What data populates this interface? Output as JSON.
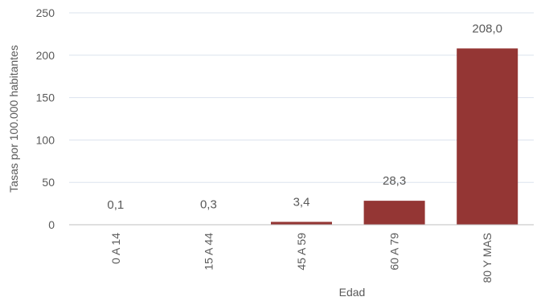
{
  "chart_data": {
    "type": "bar",
    "title": "",
    "xlabel": "Edad",
    "ylabel": "Tasas por 100.000 habitantes",
    "categories": [
      "0 A 14",
      "15 A 44",
      "45 A 59",
      "60 A 79",
      "80 Y MAS"
    ],
    "values": [
      0.1,
      0.3,
      3.4,
      28.3,
      208.0
    ],
    "data_labels": [
      "0,1",
      "0,3",
      "3,4",
      "28,3",
      "208,0"
    ],
    "y_ticks": [
      0,
      50,
      100,
      150,
      200,
      250
    ],
    "ylim": [
      0,
      250
    ],
    "grid": true,
    "legend": "none",
    "colors": {
      "bar": "#943634",
      "grid": "#dbe3ee",
      "axis": "#bfbfbf",
      "text": "#595959"
    }
  }
}
